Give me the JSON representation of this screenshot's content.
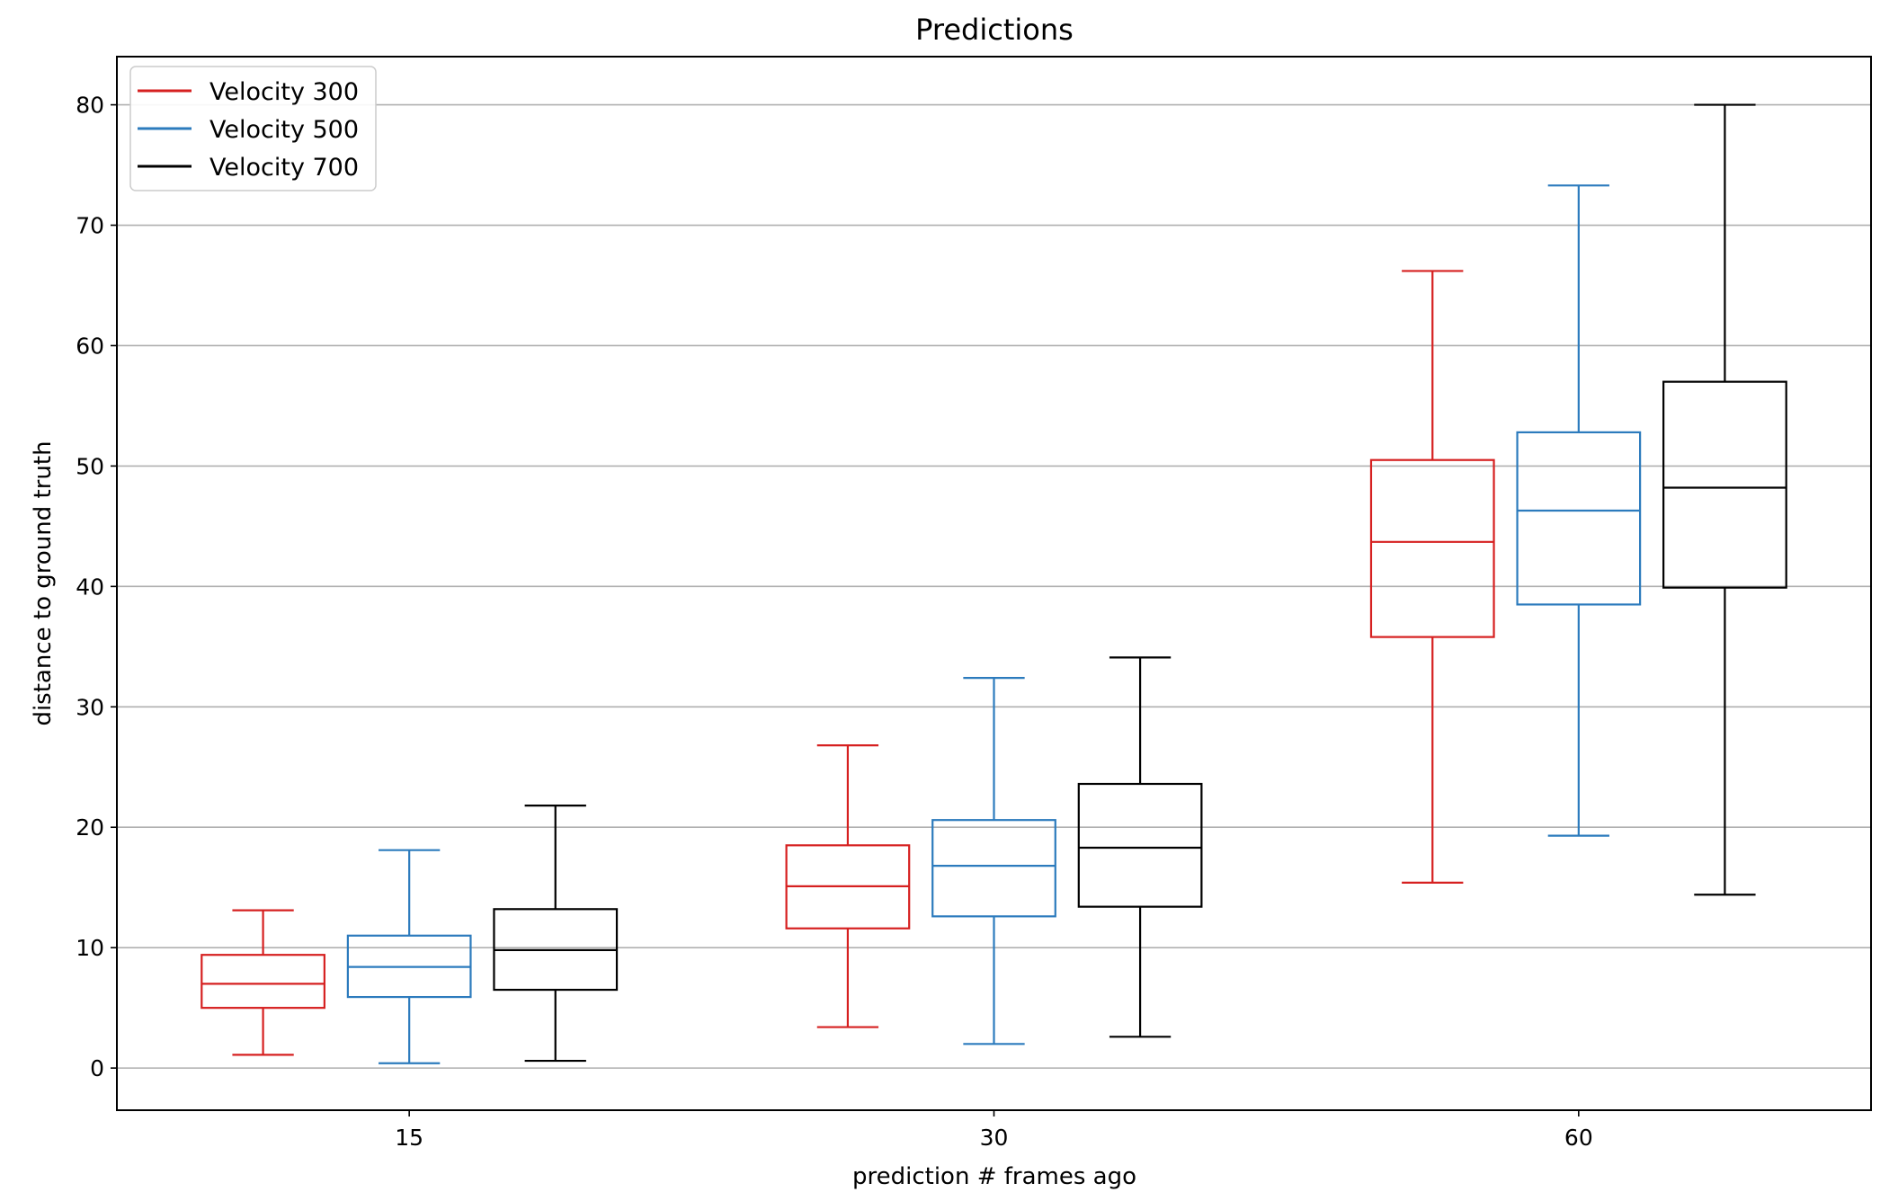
{
  "chart_data": {
    "type": "box",
    "title": "Predictions",
    "xlabel": "prediction # frames ago",
    "ylabel": "distance to ground truth",
    "categories": [
      "15",
      "30",
      "60"
    ],
    "ylim": [
      -3.5,
      84
    ],
    "yticks": [
      0,
      10,
      20,
      30,
      40,
      50,
      60,
      70,
      80
    ],
    "grid": "y",
    "legend_position": "top-left",
    "series": [
      {
        "name": "Velocity 300",
        "color": "#d62020",
        "boxes": [
          {
            "whislo": 1.1,
            "q1": 5.0,
            "median": 7.0,
            "q3": 9.4,
            "whishi": 13.1
          },
          {
            "whislo": 3.4,
            "q1": 11.6,
            "median": 15.1,
            "q3": 18.5,
            "whishi": 26.8
          },
          {
            "whislo": 15.4,
            "q1": 35.8,
            "median": 43.7,
            "q3": 50.5,
            "whishi": 66.2
          }
        ]
      },
      {
        "name": "Velocity 500",
        "color": "#2c7bbd",
        "boxes": [
          {
            "whislo": 0.4,
            "q1": 5.9,
            "median": 8.4,
            "q3": 11.0,
            "whishi": 18.1
          },
          {
            "whislo": 2.0,
            "q1": 12.6,
            "median": 16.8,
            "q3": 20.6,
            "whishi": 32.4
          },
          {
            "whislo": 19.3,
            "q1": 38.5,
            "median": 46.3,
            "q3": 52.8,
            "whishi": 73.3
          }
        ]
      },
      {
        "name": "Velocity 700",
        "color": "#000000",
        "boxes": [
          {
            "whislo": 0.6,
            "q1": 6.5,
            "median": 9.8,
            "q3": 13.2,
            "whishi": 21.8
          },
          {
            "whislo": 2.6,
            "q1": 13.4,
            "median": 18.3,
            "q3": 23.6,
            "whishi": 34.1
          },
          {
            "whislo": 14.4,
            "q1": 39.9,
            "median": 48.2,
            "q3": 57.0,
            "whishi": 80.0
          }
        ]
      }
    ]
  }
}
